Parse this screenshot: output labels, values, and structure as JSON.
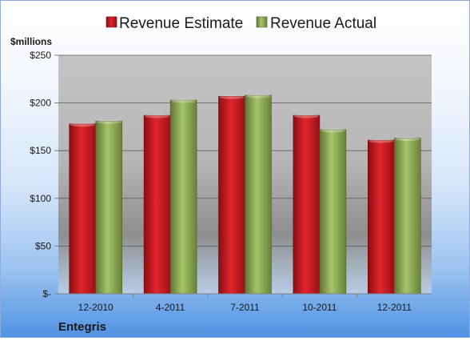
{
  "chart_data": {
    "type": "bar",
    "title": "",
    "unit_label": "$millions",
    "company": "Entegris",
    "categories": [
      "12-2010",
      "4-2011",
      "7-2011",
      "10-2011",
      "12-2011"
    ],
    "series": [
      {
        "name": "Revenue Estimate",
        "color": "#c0161c",
        "values": [
          178,
          187,
          207,
          187,
          161
        ]
      },
      {
        "name": "Revenue Actual",
        "color": "#8eaa55",
        "values": [
          181,
          203,
          208,
          172,
          163
        ]
      }
    ],
    "ylim": [
      0,
      250
    ],
    "yticks": [
      0,
      50,
      100,
      150,
      200,
      250
    ],
    "ytick_labels": [
      "$-",
      "$50",
      "$100",
      "$150",
      "$200",
      "$250"
    ],
    "grid": true,
    "legend_position": "top"
  }
}
